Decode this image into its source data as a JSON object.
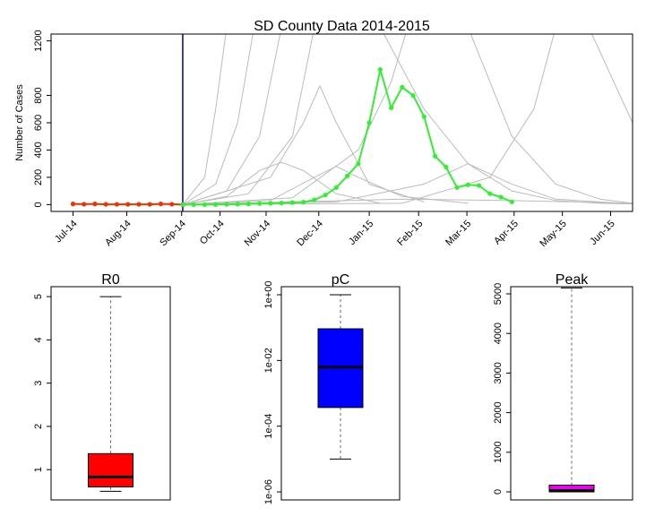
{
  "chart_data": [
    {
      "type": "line",
      "title": "SD County Data 2014-2015",
      "y_label": "Number of Cases",
      "xlim": [
        -2,
        51
      ],
      "ylim": [
        -50,
        1250
      ],
      "xticks": [
        {
          "value": 0,
          "label": "Jul-14"
        },
        {
          "value": 4.9,
          "label": "Aug-14"
        },
        {
          "value": 9.9,
          "label": "Sep-14"
        },
        {
          "value": 13.4,
          "label": "Oct-14"
        },
        {
          "value": 17.6,
          "label": "Nov-14"
        },
        {
          "value": 22.4,
          "label": "Dec-14"
        },
        {
          "value": 27,
          "label": "Jan-15"
        },
        {
          "value": 31.5,
          "label": "Feb-15"
        },
        {
          "value": 35.9,
          "label": "Mar-15"
        },
        {
          "value": 40.2,
          "label": "Apr-15"
        },
        {
          "value": 44.6,
          "label": "May-15"
        },
        {
          "value": 49,
          "label": "Jun-15"
        }
      ],
      "yticks": [
        0,
        200,
        400,
        600,
        800,
        1200
      ],
      "vline": {
        "x": 10,
        "color": "#0000aa"
      },
      "series": [
        {
          "color": "#bbbbbb",
          "x": [
            10,
            12,
            13,
            14
          ],
          "values": [
            0,
            200,
            700,
            1300
          ]
        },
        {
          "color": "#bbbbbb",
          "x": [
            10,
            13,
            15,
            16.5
          ],
          "values": [
            0,
            150,
            600,
            1300
          ]
        },
        {
          "color": "#bbbbbb",
          "x": [
            10,
            14,
            17,
            19
          ],
          "values": [
            0,
            100,
            500,
            1300
          ]
        },
        {
          "color": "#bbbbbb",
          "x": [
            10,
            16,
            20,
            22
          ],
          "values": [
            0,
            80,
            500,
            1300
          ]
        },
        {
          "color": "#bbbbbb",
          "x": [
            10,
            14,
            17,
            19,
            21,
            24,
            28
          ],
          "values": [
            0,
            60,
            250,
            310,
            250,
            80,
            10
          ]
        },
        {
          "color": "#bbbbbb",
          "x": [
            10,
            18,
            21,
            22.5,
            24,
            27,
            32
          ],
          "values": [
            0,
            200,
            600,
            870,
            600,
            150,
            20
          ]
        },
        {
          "color": "#bbbbbb",
          "x": [
            10,
            18,
            22,
            24,
            26,
            30,
            36
          ],
          "values": [
            0,
            30,
            200,
            280,
            200,
            60,
            10
          ]
        },
        {
          "color": "#bbbbbb",
          "x": [
            10,
            20,
            26,
            29,
            30.5
          ],
          "values": [
            0,
            50,
            400,
            900,
            1300
          ]
        },
        {
          "color": "#bbbbbb",
          "x": [
            10,
            24,
            32,
            36,
            40,
            44,
            50
          ],
          "values": [
            0,
            20,
            150,
            300,
            150,
            40,
            10
          ]
        },
        {
          "color": "#bbbbbb",
          "x": [
            10,
            30,
            38,
            42,
            44
          ],
          "values": [
            0,
            10,
            200,
            700,
            1300
          ]
        },
        {
          "color": "#bbbbbb",
          "x": [
            28,
            32,
            36,
            40,
            44,
            48,
            51
          ],
          "values": [
            1300,
            700,
            300,
            100,
            30,
            10,
            5
          ]
        },
        {
          "color": "#bbbbbb",
          "x": [
            36,
            40,
            44,
            48,
            51
          ],
          "values": [
            1300,
            500,
            150,
            40,
            10
          ]
        },
        {
          "color": "#bbbbbb",
          "x": [
            47,
            49,
            51
          ],
          "values": [
            1300,
            950,
            600
          ]
        },
        {
          "color": "#bbbbbb",
          "x": [
            10,
            20,
            30,
            40,
            51
          ],
          "values": [
            0,
            20,
            40,
            30,
            10
          ]
        },
        {
          "color": "#ee3300",
          "markers": true,
          "x": [
            0,
            1,
            2,
            3,
            4,
            5,
            6,
            7,
            8,
            9,
            10
          ],
          "values": [
            5,
            3,
            5,
            2,
            2,
            2,
            2,
            2,
            5,
            3,
            0
          ]
        },
        {
          "color": "#33ee33",
          "markers": true,
          "x": [
            10,
            11,
            12,
            13,
            14,
            15,
            16,
            17,
            18,
            19,
            20,
            21,
            22,
            23,
            24,
            25,
            26,
            27,
            28,
            29,
            30,
            31,
            32,
            33,
            34,
            35,
            36,
            37,
            38,
            39,
            40
          ],
          "values": [
            0,
            0,
            0,
            1,
            2,
            3,
            5,
            8,
            10,
            12,
            15,
            18,
            35,
            70,
            125,
            210,
            300,
            600,
            990,
            710,
            860,
            800,
            645,
            355,
            275,
            125,
            145,
            140,
            80,
            55,
            20
          ]
        }
      ]
    },
    {
      "type": "boxplot",
      "title": "R0",
      "color": "#ff0000",
      "ylim": [
        0.3,
        5.23
      ],
      "yticks": [
        1,
        2,
        3,
        4,
        5
      ],
      "min": 0.5,
      "q1": 0.6,
      "median": 0.83,
      "q3": 1.37,
      "max": 5.0
    },
    {
      "type": "boxplot",
      "title": "pC",
      "color": "#0000ff",
      "log": true,
      "ylim": [
        5.7e-07,
        1.76
      ],
      "yticks": [
        {
          "value": 1,
          "label": "1e+00"
        },
        {
          "value": 0.01,
          "label": "1e-02"
        },
        {
          "value": 0.0001,
          "label": "1e-04"
        },
        {
          "value": 1e-06,
          "label": "1e-06"
        }
      ],
      "min": 1e-05,
      "q1": 0.00037,
      "median": 0.0063,
      "q3": 0.092,
      "max": 1
    },
    {
      "type": "boxplot",
      "title": "Peak",
      "color": "#ee00ee",
      "ylim": [
        -204,
        5181
      ],
      "yticks": [
        0,
        1000,
        2000,
        3000,
        4000,
        5000
      ],
      "min": 0,
      "q1": 0,
      "median": 30,
      "q3": 170,
      "max": 5150
    }
  ]
}
